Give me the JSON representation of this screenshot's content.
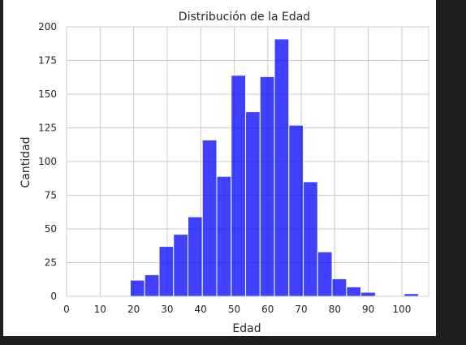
{
  "chart_data": {
    "type": "bar",
    "title": "Distribución de la Edad",
    "xlabel": "Edad",
    "ylabel": "Cantidad",
    "xlim": [
      0,
      108
    ],
    "ylim": [
      0,
      200
    ],
    "xticks": [
      0,
      10,
      20,
      30,
      40,
      50,
      60,
      70,
      80,
      90,
      100
    ],
    "yticks": [
      0,
      25,
      50,
      75,
      100,
      125,
      150,
      175,
      200
    ],
    "grid": true,
    "legend": "none",
    "bins": [
      {
        "start": 19,
        "end": 23.3,
        "count": 12
      },
      {
        "start": 23.3,
        "end": 27.6,
        "count": 16
      },
      {
        "start": 27.6,
        "end": 31.9,
        "count": 37
      },
      {
        "start": 31.9,
        "end": 36.2,
        "count": 46
      },
      {
        "start": 36.2,
        "end": 40.5,
        "count": 59
      },
      {
        "start": 40.5,
        "end": 44.8,
        "count": 116
      },
      {
        "start": 44.8,
        "end": 49.1,
        "count": 89
      },
      {
        "start": 49.1,
        "end": 53.4,
        "count": 164
      },
      {
        "start": 53.4,
        "end": 57.7,
        "count": 137
      },
      {
        "start": 57.7,
        "end": 62.0,
        "count": 163
      },
      {
        "start": 62.0,
        "end": 66.3,
        "count": 191
      },
      {
        "start": 66.3,
        "end": 70.6,
        "count": 127
      },
      {
        "start": 70.6,
        "end": 74.9,
        "count": 85
      },
      {
        "start": 74.9,
        "end": 79.2,
        "count": 33
      },
      {
        "start": 79.2,
        "end": 83.5,
        "count": 13
      },
      {
        "start": 83.5,
        "end": 87.8,
        "count": 7
      },
      {
        "start": 87.8,
        "end": 92.1,
        "count": 3
      },
      {
        "start": 92.1,
        "end": 96.4,
        "count": 0
      },
      {
        "start": 96.4,
        "end": 100.7,
        "count": 0
      },
      {
        "start": 100.7,
        "end": 105.0,
        "count": 2
      }
    ]
  },
  "colors": {
    "bar_fill": "#0000ff",
    "bar_edge": "#ffffff",
    "grid": "#cccccc",
    "axes_edge": "#cccccc"
  }
}
